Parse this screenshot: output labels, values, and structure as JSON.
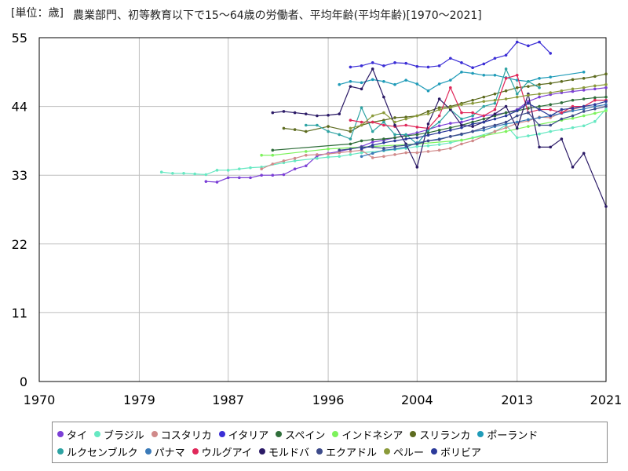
{
  "chart_data": {
    "type": "line",
    "title": "農業部門、初等教育以下で15〜64歳の労働者、平均年齢(平均年齢)[1970〜2021]",
    "unit_label": "[単位：歳]",
    "xlabel": "",
    "ylabel": "歳",
    "xlim": [
      1970,
      2021
    ],
    "ylim": [
      0,
      55
    ],
    "x_ticks": [
      1970,
      1979,
      1987,
      1996,
      2004,
      2013,
      2021
    ],
    "y_ticks": [
      0,
      11,
      22,
      33,
      44,
      55
    ],
    "grid": true,
    "legend_position": "bottom",
    "series": [
      {
        "name": "タイ",
        "color": "#7b3fd6",
        "x": [
          1985,
          1986,
          1987,
          1988,
          1989,
          1990,
          1991,
          1992,
          1993,
          1994,
          1995,
          1996,
          1997,
          1998,
          1999,
          2000,
          2001,
          2002,
          2003,
          2004,
          2005,
          2006,
          2007,
          2008,
          2009,
          2010,
          2011,
          2012,
          2013,
          2014,
          2015,
          2016,
          2017,
          2018,
          2019,
          2020,
          2021
        ],
        "y": [
          32.0,
          31.9,
          32.6,
          32.6,
          32.6,
          33.0,
          33.0,
          33.1,
          34.0,
          34.5,
          36.1,
          36.5,
          36.8,
          37.2,
          37.6,
          38.3,
          38.6,
          39.0,
          39.4,
          39.8,
          40.3,
          40.9,
          41.3,
          41.5,
          42.0,
          42.5,
          42.7,
          43.0,
          43.5,
          44.8,
          45.5,
          45.9,
          46.2,
          46.4,
          46.6,
          46.8,
          47.0
        ]
      },
      {
        "name": "ブラジル",
        "color": "#66e8c2",
        "x": [
          1981,
          1982,
          1983,
          1984,
          1985,
          1986,
          1987,
          1988,
          1989,
          1990,
          1992,
          1993,
          1995,
          1996,
          1997,
          1998,
          1999,
          2001,
          2002,
          2003,
          2004,
          2005,
          2006,
          2007,
          2008,
          2009,
          2011,
          2012,
          2013,
          2014,
          2015,
          2016,
          2017,
          2018,
          2019,
          2020,
          2021
        ],
        "y": [
          33.5,
          33.3,
          33.3,
          33.2,
          33.1,
          33.8,
          33.8,
          34.0,
          34.2,
          34.3,
          35.0,
          35.3,
          35.7,
          35.9,
          36.0,
          36.3,
          36.6,
          36.9,
          37.1,
          37.3,
          37.6,
          37.7,
          37.9,
          38.2,
          38.6,
          39.0,
          40.0,
          41.0,
          39.0,
          39.3,
          39.6,
          40.0,
          40.3,
          40.6,
          40.9,
          41.6,
          43.6
        ]
      },
      {
        "name": "コスタリカ",
        "color": "#d08a8a",
        "x": [
          1990,
          1991,
          1992,
          1993,
          1994,
          1995,
          1996,
          1997,
          1998,
          1999,
          2000,
          2001,
          2002,
          2003,
          2004,
          2005,
          2006,
          2007,
          2008,
          2009,
          2010,
          2011,
          2012,
          2013,
          2014,
          2015,
          2016,
          2017,
          2018,
          2019,
          2020,
          2021
        ],
        "y": [
          34.0,
          34.8,
          35.3,
          35.7,
          36.2,
          36.3,
          36.4,
          36.6,
          36.8,
          37.0,
          35.8,
          36.0,
          36.3,
          36.6,
          36.6,
          36.8,
          37.0,
          37.3,
          38.0,
          38.5,
          39.2,
          40.0,
          40.6,
          41.3,
          41.7,
          42.3,
          42.2,
          43.0,
          43.5,
          44.0,
          45.0,
          45.0
        ]
      },
      {
        "name": "イタリア",
        "color": "#3b2ed6",
        "x": [
          1998,
          1999,
          2000,
          2001,
          2002,
          2003,
          2004,
          2005,
          2006,
          2007,
          2008,
          2009,
          2010,
          2011,
          2012,
          2013,
          2014,
          2015,
          2016
        ],
        "y": [
          50.3,
          50.5,
          51.0,
          50.5,
          51.0,
          50.9,
          50.4,
          50.3,
          50.5,
          51.7,
          51.0,
          50.2,
          50.8,
          51.7,
          52.2,
          54.3,
          53.7,
          54.3,
          52.5
        ]
      },
      {
        "name": "スペイン",
        "color": "#2f6e3a",
        "x": [
          1991,
          1998,
          1999,
          2000,
          2001,
          2002,
          2003,
          2004,
          2005,
          2006,
          2007,
          2008,
          2009,
          2010,
          2011,
          2012,
          2013,
          2014,
          2015,
          2016,
          2017,
          2018,
          2019,
          2020,
          2021
        ],
        "y": [
          37.0,
          38.0,
          38.5,
          38.7,
          38.8,
          39.0,
          39.3,
          39.5,
          39.8,
          40.2,
          40.6,
          41.0,
          41.5,
          42.0,
          42.5,
          43.0,
          43.3,
          43.7,
          44.0,
          44.3,
          44.6,
          45.0,
          45.2,
          45.4,
          45.5
        ]
      },
      {
        "name": "インドネシア",
        "color": "#7df25c",
        "x": [
          1990,
          1991,
          1994,
          1996,
          1999,
          2004,
          2008,
          2010,
          2012,
          2014,
          2017,
          2018,
          2019,
          2020,
          2021
        ],
        "y": [
          36.2,
          36.2,
          36.8,
          37.2,
          37.5,
          38.0,
          38.6,
          39.3,
          40.0,
          40.8,
          41.8,
          42.1,
          42.5,
          42.9,
          43.3
        ]
      },
      {
        "name": "スリランカ",
        "color": "#5d6b1f",
        "x": [
          1992,
          1993,
          1994,
          1996,
          1998,
          1999,
          2000,
          2001,
          2002,
          2003,
          2004,
          2005,
          2006,
          2007,
          2008,
          2009,
          2010,
          2011,
          2012,
          2013,
          2014,
          2015,
          2016,
          2017,
          2018,
          2019,
          2020,
          2021
        ],
        "y": [
          40.5,
          40.3,
          40.0,
          40.8,
          40.0,
          41.0,
          41.5,
          41.8,
          42.2,
          42.3,
          42.5,
          43.2,
          43.8,
          44.0,
          44.5,
          45.0,
          45.5,
          46.0,
          46.5,
          47.0,
          47.2,
          47.5,
          47.7,
          48.0,
          48.3,
          48.5,
          48.8,
          49.2
        ]
      },
      {
        "name": "ポーランド",
        "color": "#1f9bb8",
        "x": [
          1997,
          1998,
          1999,
          2000,
          2001,
          2002,
          2003,
          2004,
          2005,
          2006,
          2007,
          2008,
          2009,
          2010,
          2011,
          2012,
          2013,
          2014,
          2015,
          2016,
          2019
        ],
        "y": [
          47.5,
          48.0,
          47.8,
          48.3,
          48.0,
          47.5,
          48.2,
          47.6,
          46.5,
          47.6,
          48.2,
          49.5,
          49.3,
          49.0,
          49.0,
          48.6,
          48.2,
          48.0,
          48.5,
          48.7,
          49.5
        ]
      },
      {
        "name": "ルクセンブルク",
        "color": "#2ea3a3",
        "x": [
          1994,
          1995,
          1996,
          1997,
          1998,
          1999,
          2000,
          2001,
          2002,
          2003,
          2004,
          2005,
          2006,
          2007,
          2008,
          2009,
          2010,
          2011,
          2012,
          2013,
          2014,
          2015
        ],
        "y": [
          41.0,
          41.0,
          40.0,
          39.5,
          38.8,
          43.8,
          40.0,
          41.5,
          39.5,
          39.5,
          38.0,
          40.2,
          41.5,
          43.5,
          42.0,
          42.5,
          44.0,
          44.5,
          50.0,
          46.0,
          48.0,
          47.0
        ]
      },
      {
        "name": "パナマ",
        "color": "#3a7ab8",
        "x": [
          1999,
          2000,
          2001,
          2002,
          2003,
          2004,
          2005,
          2006,
          2007,
          2008,
          2009,
          2010,
          2011,
          2012,
          2013,
          2014,
          2015,
          2016,
          2017,
          2018,
          2019,
          2020,
          2021
        ],
        "y": [
          36.0,
          36.5,
          37.0,
          37.2,
          37.5,
          38.2,
          38.5,
          38.8,
          39.2,
          39.5,
          40.0,
          40.2,
          40.8,
          41.2,
          41.5,
          41.9,
          42.2,
          42.5,
          42.9,
          43.3,
          43.6,
          44.0,
          44.3
        ]
      },
      {
        "name": "ウルグアイ",
        "color": "#e0285a",
        "x": [
          1998,
          1999,
          2000,
          2001,
          2002,
          2003,
          2004,
          2005,
          2006,
          2007,
          2008,
          2009,
          2010,
          2011,
          2012,
          2013,
          2014,
          2015,
          2016,
          2017,
          2018,
          2019,
          2020,
          2021
        ],
        "y": [
          41.8,
          41.5,
          41.5,
          41.0,
          40.8,
          41.0,
          40.7,
          40.5,
          42.5,
          47.0,
          43.0,
          43.0,
          42.5,
          43.5,
          48.5,
          49.0,
          43.0,
          43.5,
          43.5,
          43.0,
          44.0,
          44.0,
          45.0,
          45.0
        ]
      },
      {
        "name": "モルドバ",
        "color": "#2b1a66",
        "x": [
          1991,
          1992,
          1993,
          1994,
          1995,
          1996,
          1997,
          1998,
          1999,
          2000,
          2001,
          2002,
          2003,
          2004,
          2005,
          2006,
          2007,
          2008,
          2009,
          2010,
          2011,
          2012,
          2013,
          2014,
          2015,
          2016,
          2017,
          2018,
          2019,
          2021
        ],
        "y": [
          43.0,
          43.2,
          43.0,
          42.8,
          42.5,
          42.6,
          42.8,
          47.2,
          46.8,
          50.0,
          45.5,
          41.0,
          38.0,
          34.3,
          41.2,
          45.2,
          43.5,
          41.0,
          40.8,
          41.5,
          42.8,
          44.0,
          40.5,
          46.0,
          37.5,
          37.5,
          38.8,
          34.3,
          36.5,
          28.0
        ]
      },
      {
        "name": "エクアドル",
        "color": "#3d4b8a",
        "x": [
          1997,
          1998,
          1999,
          2000,
          2001,
          2002,
          2003,
          2004,
          2005,
          2006,
          2007,
          2008,
          2009,
          2010,
          2011,
          2012,
          2013,
          2014,
          2015,
          2016,
          2017,
          2018,
          2019,
          2020,
          2021
        ],
        "y": [
          37.0,
          37.2,
          37.5,
          37.5,
          37.3,
          37.6,
          37.8,
          38.0,
          38.5,
          38.7,
          39.2,
          39.6,
          40.0,
          40.6,
          41.0,
          41.5,
          42.5,
          43.0,
          41.0,
          41.0,
          42.0,
          42.5,
          43.2,
          43.6,
          44.0
        ]
      },
      {
        "name": "ペルー",
        "color": "#8a9a3a",
        "x": [
          1998,
          1999,
          2000,
          2001,
          2002,
          2003,
          2004,
          2005,
          2006,
          2007,
          2008,
          2009,
          2010,
          2011,
          2012,
          2013,
          2014,
          2015,
          2016,
          2017,
          2018,
          2019,
          2020,
          2021
        ],
        "y": [
          40.5,
          41.0,
          42.5,
          43.0,
          41.5,
          42.0,
          42.5,
          42.8,
          43.5,
          43.8,
          44.3,
          44.5,
          44.8,
          45.0,
          45.2,
          45.5,
          45.8,
          46.0,
          46.2,
          46.5,
          46.8,
          47.0,
          47.3,
          47.5
        ]
      },
      {
        "name": "ボリビア",
        "color": "#2b3a9a",
        "x": [
          1999,
          2000,
          2001,
          2002,
          2003,
          2004,
          2005,
          2006,
          2007,
          2008,
          2009,
          2010,
          2011,
          2012,
          2013,
          2014,
          2015,
          2016,
          2017,
          2018,
          2019,
          2020,
          2021
        ],
        "y": [
          37.2,
          37.8,
          38.2,
          38.5,
          38.8,
          39.0,
          39.4,
          39.8,
          40.2,
          40.6,
          41.2,
          41.5,
          42.0,
          42.5,
          43.3,
          44.5,
          43.5,
          42.5,
          43.5,
          43.7,
          44.0,
          44.3,
          44.8
        ]
      }
    ]
  }
}
